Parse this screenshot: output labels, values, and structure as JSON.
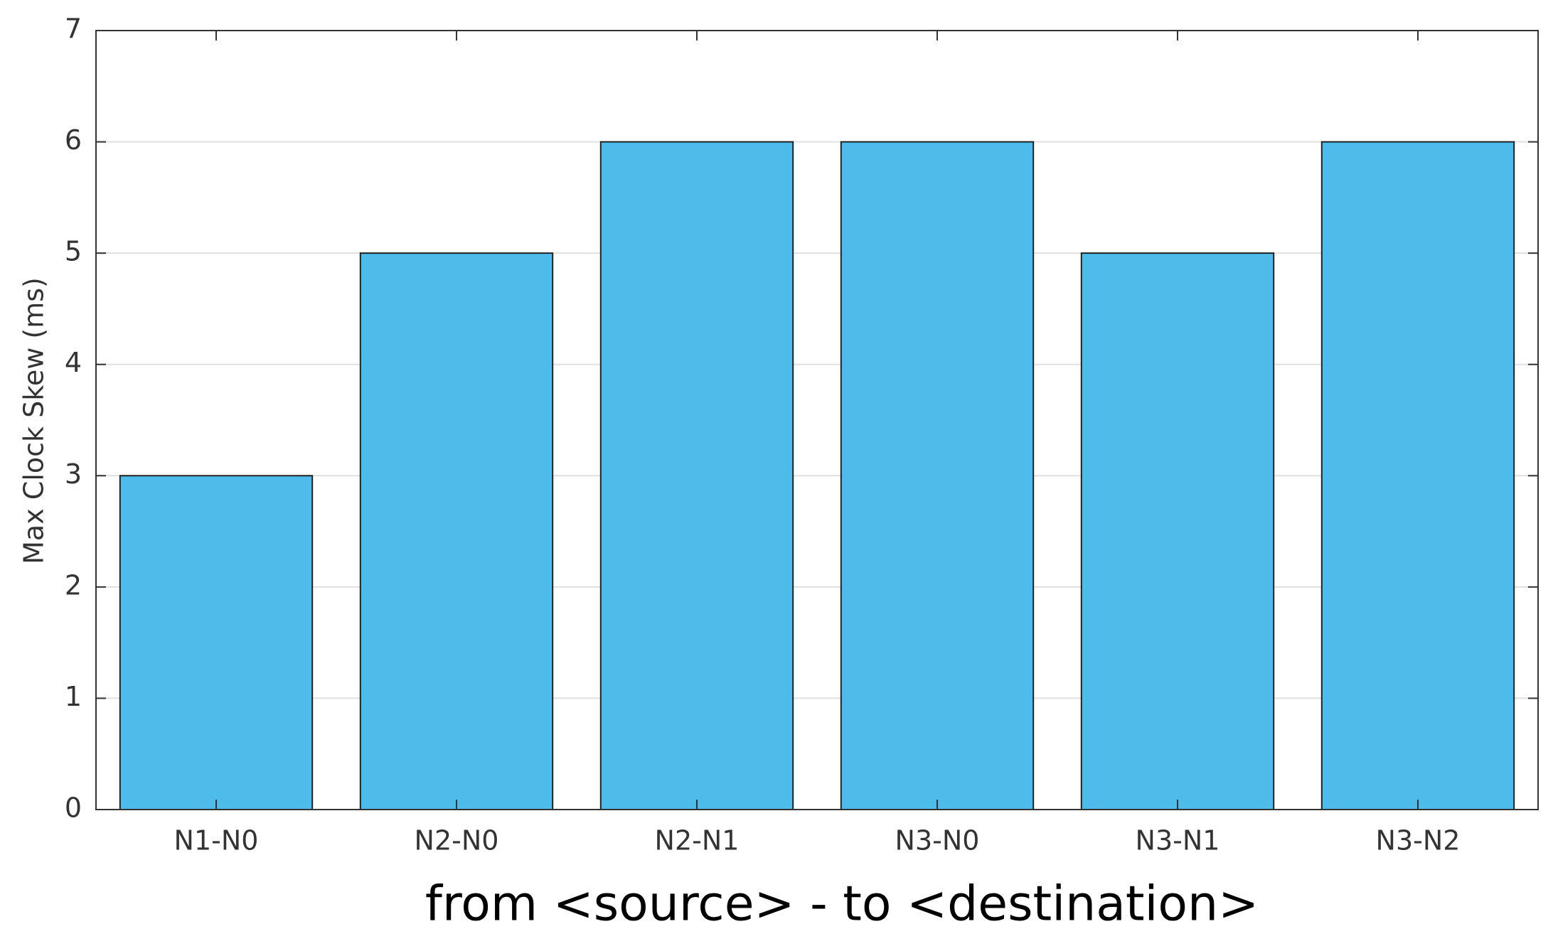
{
  "chart_data": {
    "type": "bar",
    "x_label": "from <source> - to <destination>",
    "y_label": "Max Clock Skew (ms)",
    "categories": [
      "N1-N0",
      "N2-N0",
      "N2-N1",
      "N3-N0",
      "N3-N1",
      "N3-N2"
    ],
    "values": [
      3,
      5,
      6,
      6,
      5,
      6
    ],
    "color": "#4dbceb",
    "ylim": [
      0,
      7
    ],
    "yticks": [
      0,
      1,
      2,
      3,
      4,
      5,
      6,
      7
    ],
    "grid": true
  }
}
